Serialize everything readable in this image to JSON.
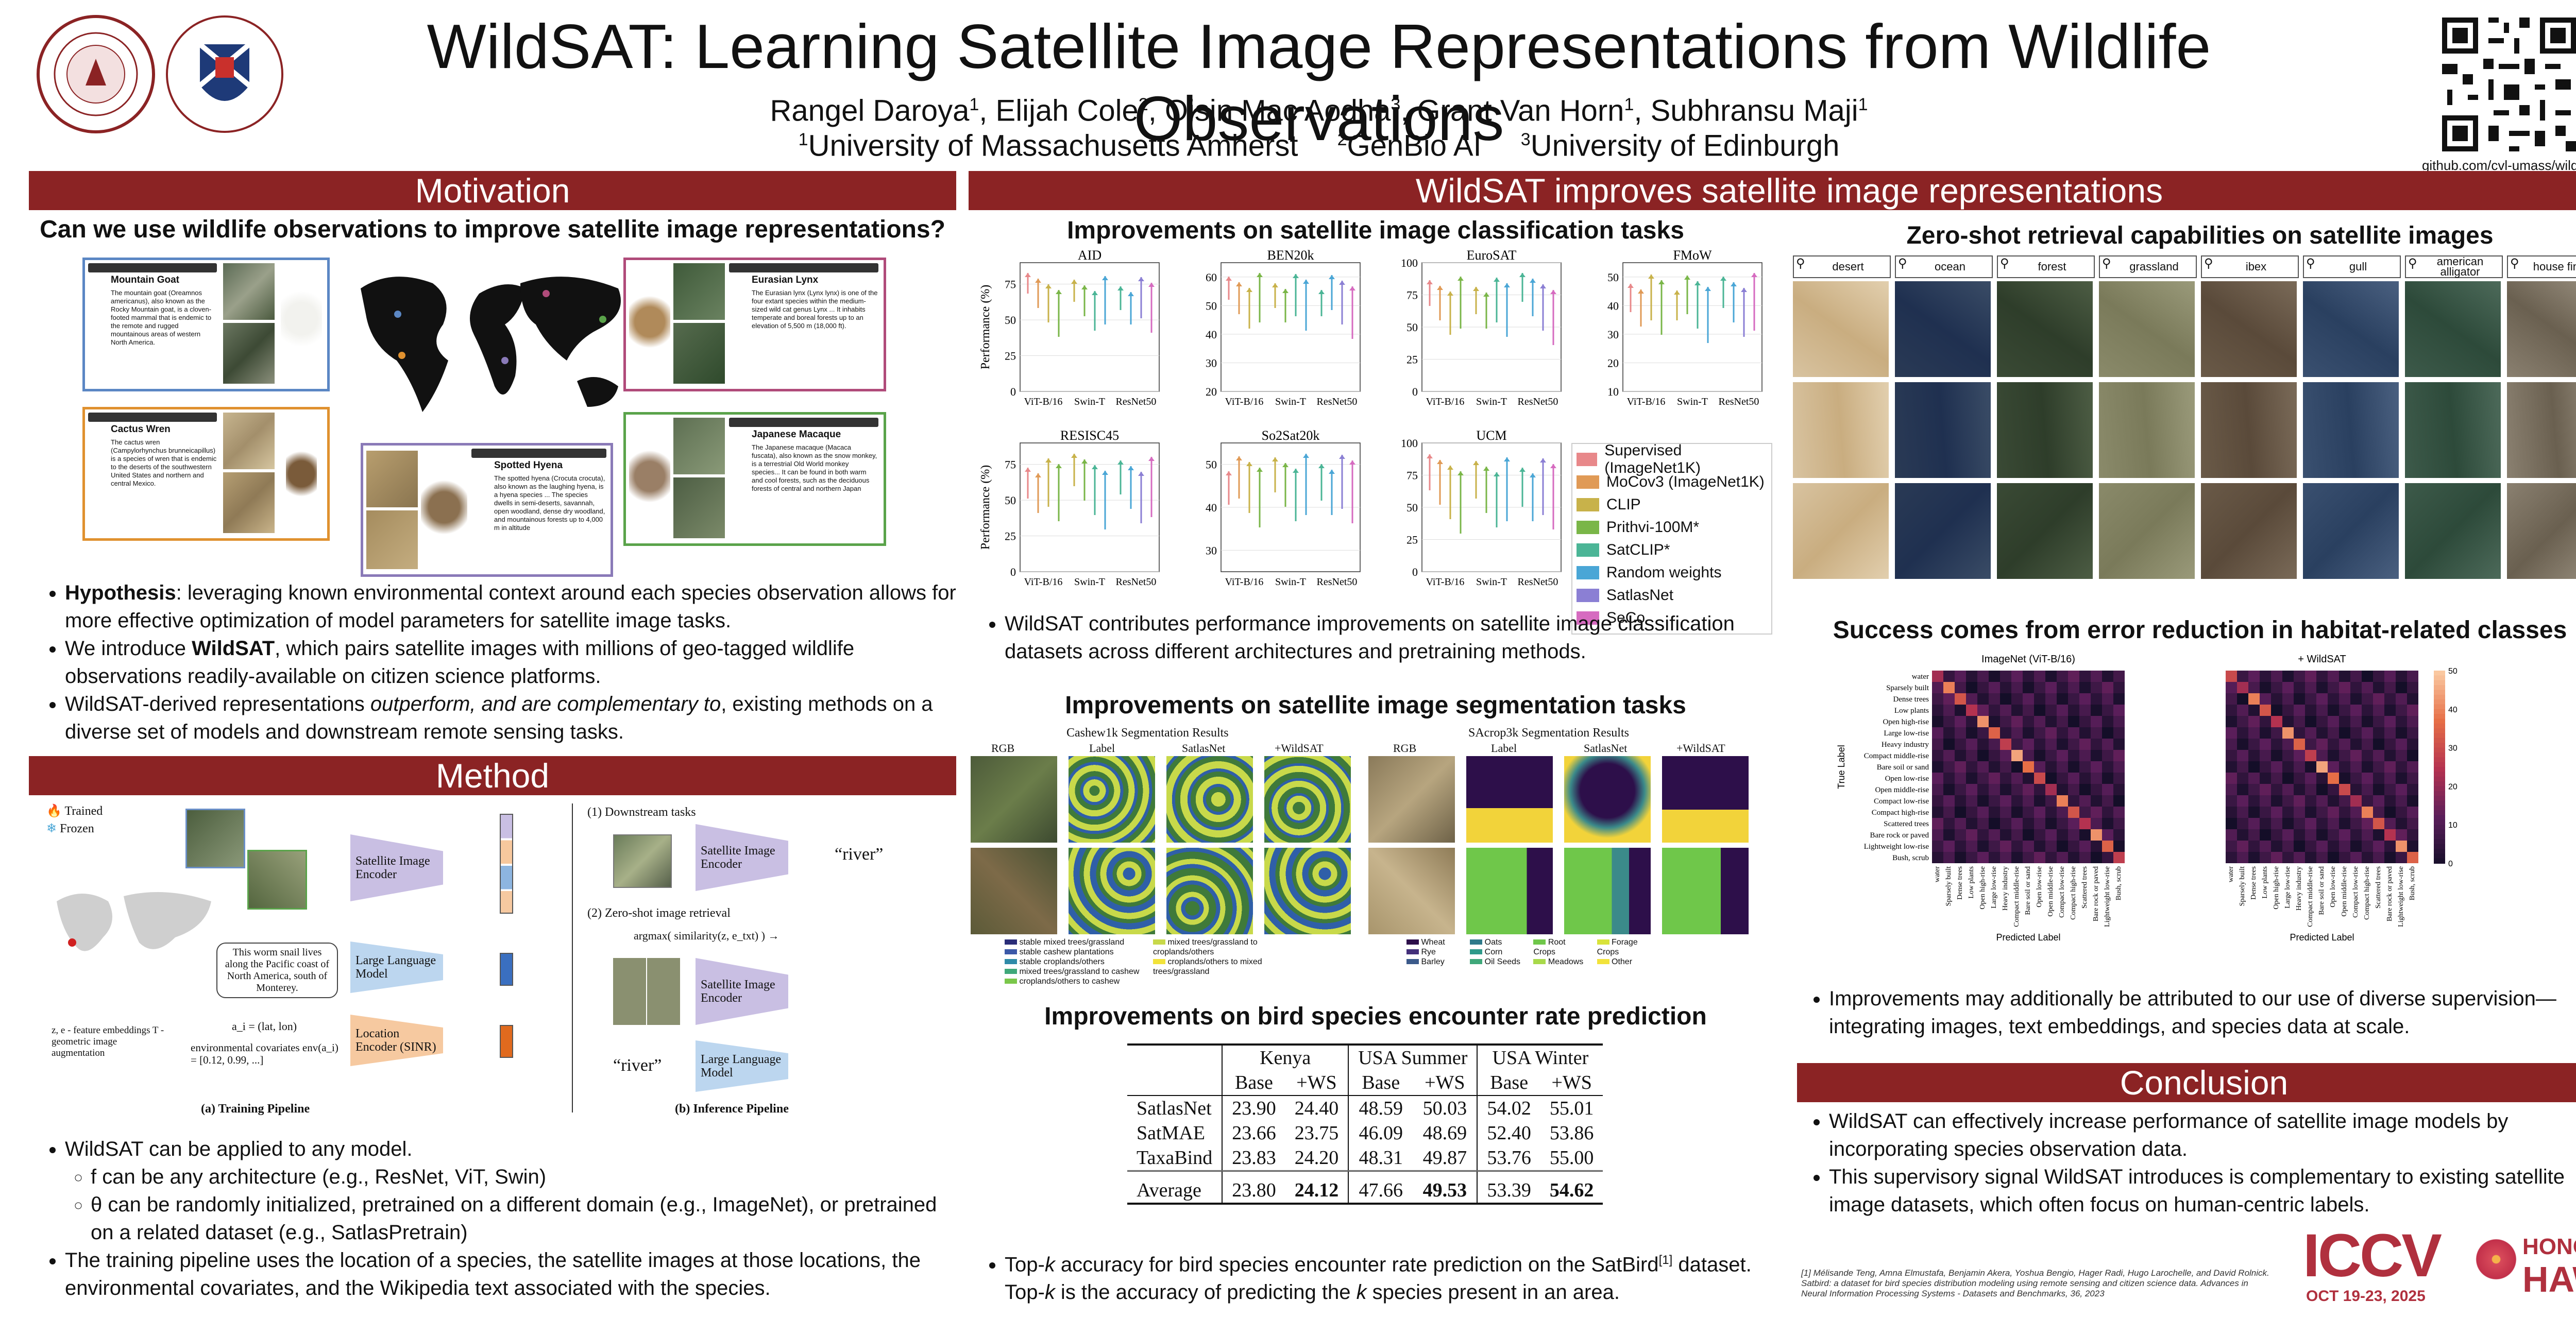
{
  "header": {
    "title": "WildSAT: Learning Satellite Image Representations from Wildlife Observations",
    "authors": [
      "Rangel Daroya",
      "1",
      ", Elijah Cole",
      "2",
      ", Oisin Mac Aodha",
      "3",
      ", Grant Van Horn",
      "1",
      ", Subhransu Maji",
      "1"
    ],
    "affil_1_sup": "1",
    "affil_1": "University of Massachusetts Amherst",
    "affil_2_sup": "2",
    "affil_2": "GenBio AI",
    "affil_3_sup": "3",
    "affil_3": "University of Edinburgh",
    "github": "github.com/cvl-umass/wildsat"
  },
  "motivation": {
    "banner": "Motivation",
    "question": "Can we use wildlife observations to improve satellite image representations?",
    "species": [
      {
        "name": "Mountain Goat",
        "text": "The mountain goat (Oreamnos americanus), also known as the Rocky Mountain goat, is a cloven-footed mammal that is endemic to the remote and rugged mountainous areas of western North America."
      },
      {
        "name": "Cactus Wren",
        "text": "The cactus wren (Campylorhynchus brunneicapillus) is a species of wren that is endemic to the deserts of the southwestern United States and northern and central Mexico."
      },
      {
        "name": "Spotted Hyena",
        "text": "The spotted hyena (Crocuta crocuta), also known as the laughing hyena, is a hyena species ... The species dwells in semi-deserts, savannah, open woodland, dense dry woodland, and mountainous forests up to 4,000 m in altitude"
      },
      {
        "name": "Eurasian Lynx",
        "text": "The Eurasian lynx (Lynx lynx) is one of the four extant species within the medium-sized wild cat genus Lynx ... It inhabits temperate and boreal forests up to an elevation of 5,500 m (18,000 ft)."
      },
      {
        "name": "Japanese Macaque",
        "text": "The Japanese macaque (Macaca fuscata), also known as the snow monkey, is a terrestrial Old World monkey species... It can be found in both warm and cool forests, such as the deciduous forests of central and northern Japan"
      }
    ],
    "bullets": [
      {
        "bold": "Hypothesis",
        "rest": ": leveraging known environmental context around each species observation allows for more effective optimization of model parameters for satellite image tasks."
      },
      {
        "pre": "We introduce ",
        "bold": "WildSAT",
        "rest": ", which pairs satellite images with millions of geo-tagged wildlife observations readily-available on citizen science platforms."
      },
      {
        "pre": "WildSAT-derived representations ",
        "italic": "outperform, and are complementary to",
        "rest": ", existing methods on a diverse set of models and downstream remote sensing tasks."
      }
    ]
  },
  "method": {
    "banner": "Method",
    "legend_trained": "Trained",
    "legend_frozen": "Frozen",
    "sat_encoder": "Satellite Image Encoder",
    "llm": "Large Language Model",
    "loc_encoder": "Location Encoder (SINR)",
    "wiki_text": "This worm snail lives along the Pacific coast of North America, south of Monterey.",
    "loc_eq": "a_i = (lat, lon)",
    "env_text": "environmental covariates env(a_i) = [0.12, 0.99, ...]",
    "z_note": "z, e - feature embeddings T - geometric image augmentation",
    "training_caption": "(a) Training Pipeline",
    "inference_caption": "(b) Inference Pipeline",
    "downstream": "(1) Downstream tasks",
    "zeroshot": "(2) Zero-shot image retrieval",
    "argmax": "argmax( similarity(z, e_txt) ) →",
    "river": "“river”",
    "bullets": [
      {
        "text": "WildSAT can be applied to any model.",
        "level": 1
      },
      {
        "text": "f can be any architecture (e.g., ResNet, ViT, Swin)",
        "level": 2
      },
      {
        "text": "θ can be randomly initialized, pretrained on a different domain (e.g., ImageNet), or pretrained on a related dataset (e.g., SatlasPretrain)",
        "level": 2
      },
      {
        "text": "The training pipeline uses the location of a species, the satellite images at those locations, the environmental covariates, and the Wikipedia text associated with the species.",
        "level": 1
      }
    ]
  },
  "improves": {
    "banner": "WildSAT improves satellite image representations",
    "cls_title": "Improvements on satellite image classification tasks",
    "cls_bullet": "WildSAT contributes performance improvements on satellite image classification datasets across different architectures and pretraining methods.",
    "seg_title": "Improvements on satellite image segmentation tasks",
    "seg_cashew": "Cashew1k Segmentation Results",
    "seg_sacrop": "SAcrop3k Segmentation Results",
    "seg_cols": [
      "RGB",
      "Label",
      "SatlasNet",
      "+WildSAT"
    ],
    "cashew_legend": [
      "stable mixed trees/grassland",
      "stable cashew plantations",
      "stable croplands/others",
      "mixed trees/grassland to cashew",
      "croplands/others to cashew",
      "mixed trees/grassland to croplands/others",
      "croplands/others to mixed trees/grassland"
    ],
    "sacrop_legend": [
      "Wheat",
      "Rye",
      "Barley",
      "Oats",
      "Corn",
      "Oil Seeds",
      "Root Crops",
      "Meadows",
      "Forage Crops",
      "Other"
    ],
    "bird_title": "Improvements on bird species encounter rate prediction",
    "bird_bullet_1": "Top-",
    "bird_bullet_k": "k",
    "bird_bullet_2": " accuracy for bird species encounter rate prediction on the SatBird",
    "bird_bullet_sup": "[1]",
    "bird_bullet_3": " dataset. Top-",
    "bird_bullet_4": " is the accuracy of predicting the ",
    "bird_bullet_5": " species present in an area.",
    "zs_title": "Zero-shot retrieval capabilities on satellite images",
    "zs_queries": [
      "desert",
      "ocean",
      "forest",
      "grassland",
      "ibex",
      "gull",
      "american alligator",
      "house finch"
    ],
    "err_title": "Success comes from error reduction in habitat-related classes",
    "err_bullet": "Improvements may additionally be attributed to our use of diverse supervision—integrating images, text embeddings, and species data at scale."
  },
  "chart_data": [
    {
      "type": "scatter",
      "title": "AID",
      "ylabel": "Performance (%)",
      "categories": [
        "ViT-B/16",
        "Swin-T",
        "ResNet50"
      ],
      "ylim": [
        0,
        90
      ]
    },
    {
      "type": "scatter",
      "title": "BEN20k",
      "categories": [
        "ViT-B/16",
        "Swin-T",
        "ResNet50"
      ],
      "ylim": [
        20,
        65
      ]
    },
    {
      "type": "scatter",
      "title": "EuroSAT",
      "categories": [
        "ViT-B/16",
        "Swin-T",
        "ResNet50"
      ],
      "ylim": [
        0,
        100
      ]
    },
    {
      "type": "scatter",
      "title": "FMoW",
      "categories": [
        "ViT-B/16",
        "Swin-T",
        "ResNet50"
      ],
      "ylim": [
        10,
        55
      ]
    },
    {
      "type": "scatter",
      "title": "RESISC45",
      "ylabel": "Performance (%)",
      "categories": [
        "ViT-B/16",
        "Swin-T",
        "ResNet50"
      ],
      "ylim": [
        0,
        90
      ]
    },
    {
      "type": "scatter",
      "title": "So2Sat20k",
      "categories": [
        "ViT-B/16",
        "Swin-T",
        "ResNet50"
      ],
      "ylim": [
        25,
        55
      ]
    },
    {
      "type": "scatter",
      "title": "UCM",
      "categories": [
        "ViT-B/16",
        "Swin-T",
        "ResNet50"
      ],
      "ylim": [
        0,
        100
      ]
    },
    {
      "type": "heatmap",
      "title": "ImageNet (ViT-B/16)",
      "xlabel": "Predicted Label",
      "ylabel": "True Label",
      "classes": [
        "water",
        "Sparsely built",
        "Dense trees",
        "Low plants",
        "Open high-rise",
        "Large low-rise",
        "Heavy industry",
        "Compact middle-rise",
        "Bare soil or sand",
        "Open low-rise",
        "Open middle-rise",
        "Compact low-rise",
        "Compact high-rise",
        "Scattered trees",
        "Bare rock or paved",
        "Lightweight low-rise",
        "Bush, scrub"
      ]
    },
    {
      "type": "heatmap",
      "title": "+ WildSAT",
      "xlabel": "Predicted Label",
      "classes": [
        "water",
        "Sparsely built",
        "Dense trees",
        "Low plants",
        "Open high-rise",
        "Large low-rise",
        "Heavy industry",
        "Compact middle-rise",
        "Bare soil or sand",
        "Open low-rise",
        "Open middle-rise",
        "Compact low-rise",
        "Compact high-rise",
        "Scattered trees",
        "Bare rock or paved",
        "Lightweight low-rise",
        "Bush, scrub"
      ],
      "colorbar": [
        0,
        10,
        20,
        30,
        40,
        50
      ]
    }
  ],
  "cls_legend": [
    {
      "label": "Supervised (ImageNet1K)",
      "color": "#e8888a"
    },
    {
      "label": "MoCov3 (ImageNet1K)",
      "color": "#e09a56"
    },
    {
      "label": "CLIP",
      "color": "#c8b24a"
    },
    {
      "label": "Prithvi-100M*",
      "color": "#7ab648"
    },
    {
      "label": "SatCLIP*",
      "color": "#4bb596"
    },
    {
      "label": "Random weights",
      "color": "#4aa6d6"
    },
    {
      "label": "SatlasNet",
      "color": "#8b7fd4"
    },
    {
      "label": "SeCo",
      "color": "#d66bc0"
    }
  ],
  "bird_table": {
    "groups": [
      "Kenya",
      "USA Summer",
      "USA Winter"
    ],
    "sub": [
      "Base",
      "+WS",
      "Base",
      "+WS",
      "Base",
      "+WS"
    ],
    "rows": [
      {
        "name": "SatlasNet",
        "vals": [
          "23.90",
          "24.40",
          "48.59",
          "50.03",
          "54.02",
          "55.01"
        ]
      },
      {
        "name": "SatMAE",
        "vals": [
          "23.66",
          "23.75",
          "46.09",
          "48.69",
          "52.40",
          "53.86"
        ]
      },
      {
        "name": "TaxaBind",
        "vals": [
          "23.83",
          "24.20",
          "48.31",
          "49.87",
          "53.76",
          "55.00"
        ]
      }
    ],
    "avg": {
      "name": "Average",
      "vals": [
        "23.80",
        "24.12",
        "47.66",
        "49.53",
        "53.39",
        "54.62"
      ]
    }
  },
  "conclusion": {
    "banner": "Conclusion",
    "bullets": [
      "WildSAT can effectively increase performance of satellite image models by incorporating species observation data.",
      "This supervisory signal WildSAT introduces is complementary to existing satellite image datasets, which often focus on human-centric labels."
    ],
    "reference": "[1] Mélisande Teng, Amna Elmustafa, Benjamin Akera, Yoshua Bengio, Hager Radi, Hugo Larochelle, and David Rolnick. Satbird: a dataset for bird species distribution modeling using remote sensing and citizen science data. Advances in Neural Information Processing Systems - Datasets and Benchmarks, 36, 2023"
  },
  "footer": {
    "iccv": "ICCV",
    "dates": "OCT 19-23, 2025",
    "honolulu": "HONOLULU",
    "hawaii": "HAWAII"
  },
  "colors": {
    "accent": "#8b2324",
    "goat": "#5b87c4",
    "wren": "#e0912f",
    "hyena": "#8a7ab8",
    "lynx": "#b04b7a",
    "macaque": "#5aa34a"
  }
}
